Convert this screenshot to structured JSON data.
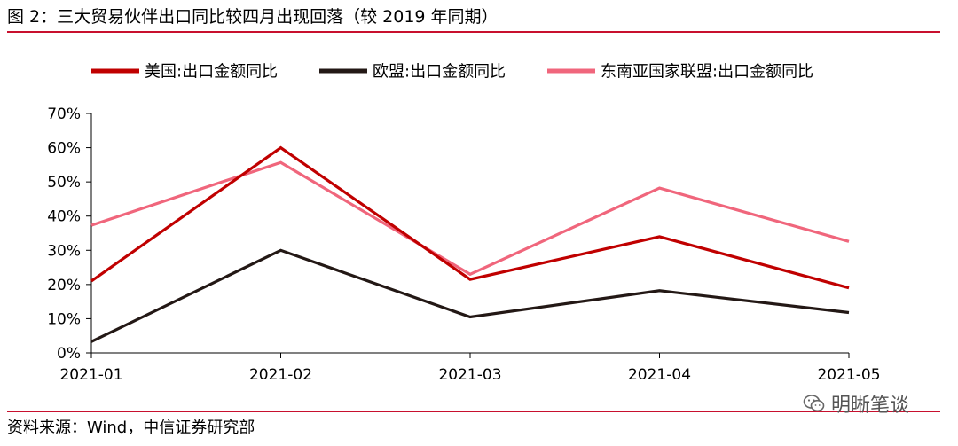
{
  "figure": {
    "title": "图 2：三大贸易伙伴出口同比较四月出现回落（较 2019 年同期）",
    "source": "资料来源：Wind，中信证券研究部",
    "watermark": "明晰笔谈",
    "rule_color": "#c8102e"
  },
  "chart_data": {
    "type": "line",
    "title": "",
    "xlabel": "",
    "ylabel": "",
    "categories": [
      "2021-01",
      "2021-02",
      "2021-03",
      "2021-04",
      "2021-05"
    ],
    "y_tick_labels": [
      "0%",
      "10%",
      "20%",
      "30%",
      "40%",
      "50%",
      "60%",
      "70%"
    ],
    "y_ticks": [
      0,
      10,
      20,
      30,
      40,
      50,
      60,
      70
    ],
    "ylim": [
      0,
      70
    ],
    "unit": "%",
    "grid": false,
    "legend_position": "top",
    "series": [
      {
        "name": "美国:出口金额同比",
        "color": "#c00000",
        "values": [
          21,
          60,
          21.5,
          34,
          19
        ]
      },
      {
        "name": "欧盟:出口金额同比",
        "color": "#231815",
        "values": [
          3.3,
          30,
          10.5,
          18.2,
          11.8
        ]
      },
      {
        "name": "东南亚国家联盟:出口金额同比",
        "color": "#f0667c",
        "values": [
          37.3,
          55.7,
          23,
          48.2,
          32.6
        ]
      }
    ]
  }
}
